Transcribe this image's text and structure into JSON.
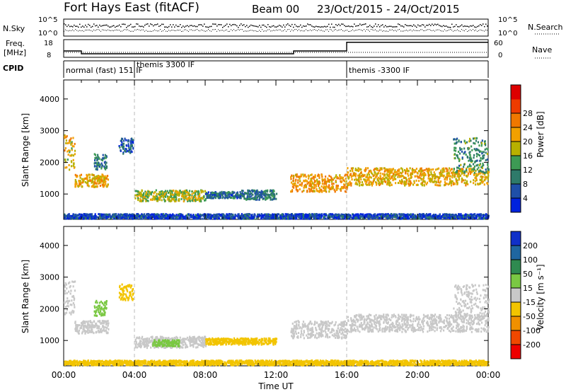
{
  "header": {
    "station": "Fort Hays East (fitACF)",
    "beam": "Beam 00",
    "date_range": "23/Oct/2015 - 24/Oct/2015"
  },
  "strip": {
    "nsky_label": "N.Sky",
    "nsky_ticks": [
      "10^5",
      "10^0"
    ],
    "nsearch_label": "N.Search",
    "nsearch_ticks": [
      "10^5",
      "10^0"
    ],
    "freq_label": "Freq.",
    "freq_unit": "[MHz]",
    "freq_ticks": [
      "18",
      "8"
    ],
    "nave_label": "Nave",
    "nave_ticks": [
      "60",
      "0"
    ],
    "cpid_label": "CPID",
    "freq_steps": [
      {
        "start": 0,
        "end": 1,
        "mhz": 11.6
      },
      {
        "start": 1,
        "end": 13,
        "mhz": 10.0
      },
      {
        "start": 13,
        "end": 16,
        "mhz": 11.6
      },
      {
        "start": 16,
        "end": 24,
        "mhz": 16.5
      }
    ],
    "cpid_segments": [
      {
        "start": 0,
        "label": "normal (fast) 151 IF"
      },
      {
        "start": 4,
        "label": "themis 3300 IF"
      },
      {
        "start": 16,
        "label": "themis -3300 IF"
      }
    ]
  },
  "chart_data": [
    {
      "type": "heatmap",
      "name": "power",
      "ylabel": "Slant Range [km]",
      "xlabel": "",
      "y_ticks": [
        "1000",
        "2000",
        "3000",
        "4000"
      ],
      "ylim": [
        200,
        4600
      ],
      "xlim": [
        0,
        24
      ],
      "colorbar_label": "Power [dB]",
      "colorbar_ticks": [
        "4",
        "8",
        "12",
        "16",
        "20",
        "24",
        "28"
      ],
      "colorscale": [
        "#0022dd",
        "#1f4fa8",
        "#2e7a6a",
        "#3d9a54",
        "#b8b000",
        "#f2a000",
        "#f07800",
        "#ee3b00",
        "#dd0000"
      ],
      "scatter_bands": [
        {
          "t0": 0.0,
          "t1": 0.6,
          "r0": 1800,
          "r1": 2900,
          "v": 20
        },
        {
          "t0": 0.6,
          "t1": 2.5,
          "r0": 1250,
          "r1": 1650,
          "v": 21
        },
        {
          "t0": 1.7,
          "t1": 2.4,
          "r0": 1800,
          "r1": 2300,
          "v": 10
        },
        {
          "t0": 3.1,
          "t1": 3.9,
          "r0": 2300,
          "r1": 2800,
          "v": 6
        },
        {
          "t0": 4.0,
          "t1": 8.0,
          "r0": 800,
          "r1": 1150,
          "v": 17
        },
        {
          "t0": 8.0,
          "t1": 10.0,
          "r0": 900,
          "r1": 1100,
          "v": 8
        },
        {
          "t0": 10.0,
          "t1": 12.0,
          "r0": 850,
          "r1": 1150,
          "v": 9
        },
        {
          "t0": 12.8,
          "t1": 16.0,
          "r0": 1100,
          "r1": 1650,
          "v": 23
        },
        {
          "t0": 16.0,
          "t1": 24.0,
          "r0": 1300,
          "r1": 1850,
          "v": 21
        },
        {
          "t0": 22.0,
          "t1": 24.0,
          "r0": 1700,
          "r1": 2800,
          "v": 12
        },
        {
          "t0": 0.0,
          "t1": 24.0,
          "r0": 250,
          "r1": 400,
          "v": 5
        }
      ]
    },
    {
      "type": "heatmap",
      "name": "velocity",
      "ylabel": "Slant Range [km]",
      "xlabel": "Time UT",
      "x_ticks": [
        "00:00",
        "04:00",
        "08:00",
        "12:00",
        "16:00",
        "20:00",
        "00:00"
      ],
      "y_ticks": [
        "1000",
        "2000",
        "3000",
        "4000"
      ],
      "ylim": [
        200,
        4600
      ],
      "xlim": [
        0,
        24
      ],
      "colorbar_label": "Velocity [m s⁻¹]",
      "colorbar_ticks": [
        "-200",
        "-100",
        "-50",
        "-15",
        "15",
        "50",
        "100",
        "200"
      ],
      "colorscale": [
        "#ee0000",
        "#f04800",
        "#f09000",
        "#f2c400",
        "#c8c8c8",
        "#7ac843",
        "#2f8a50",
        "#1f66a0",
        "#1030c8"
      ],
      "scatter_bands": [
        {
          "t0": 0.0,
          "t1": 0.6,
          "r0": 1800,
          "r1": 2900,
          "v": 0
        },
        {
          "t0": 0.6,
          "t1": 2.5,
          "r0": 1250,
          "r1": 1650,
          "v": 0
        },
        {
          "t0": 1.7,
          "t1": 2.4,
          "r0": 1800,
          "r1": 2300,
          "v": 30
        },
        {
          "t0": 3.1,
          "t1": 3.9,
          "r0": 2300,
          "r1": 2800,
          "v": -40
        },
        {
          "t0": 4.0,
          "t1": 8.0,
          "r0": 800,
          "r1": 1150,
          "v": 5
        },
        {
          "t0": 5.0,
          "t1": 6.5,
          "r0": 850,
          "r1": 1050,
          "v": 35
        },
        {
          "t0": 8.0,
          "t1": 12.0,
          "r0": 900,
          "r1": 1100,
          "v": -30
        },
        {
          "t0": 12.8,
          "t1": 16.0,
          "r0": 1100,
          "r1": 1650,
          "v": 0
        },
        {
          "t0": 16.0,
          "t1": 24.0,
          "r0": 1300,
          "r1": 1850,
          "v": 0
        },
        {
          "t0": 22.0,
          "t1": 24.0,
          "r0": 1700,
          "r1": 2800,
          "v": 0
        },
        {
          "t0": 0.0,
          "t1": 24.0,
          "r0": 250,
          "r1": 400,
          "v": -40
        }
      ]
    }
  ]
}
